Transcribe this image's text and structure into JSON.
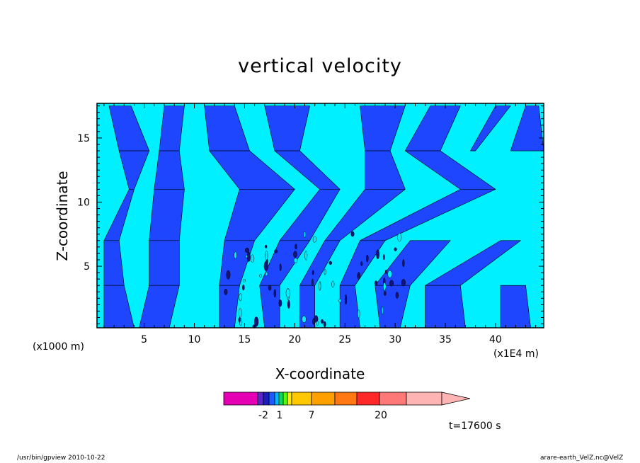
{
  "chart_data": {
    "type": "heatmap",
    "title": "vertical velocity",
    "xlabel": "X-coordinate",
    "ylabel": "Z-coordinate",
    "x_unit_label": "(x1E4 m)",
    "y_unit_label": "(x1000 m)",
    "xlim": [
      0.3,
      44.8
    ],
    "ylim": [
      0.2,
      17.7
    ],
    "x_ticks": [
      5,
      10,
      15,
      20,
      25,
      30,
      35,
      40
    ],
    "y_ticks": [
      5,
      10,
      15
    ],
    "time_label": "t=17600 s",
    "field_colors": {
      "negative": "#1e46ff",
      "positive": "#00f0ff",
      "contour": "#000000"
    },
    "colorbar": {
      "labels": [
        "-2",
        "1",
        "7",
        "20"
      ],
      "levels": [
        -4,
        -2,
        -1.5,
        -1,
        -0.5,
        0,
        0.5,
        1,
        4,
        7,
        10,
        13,
        20,
        24
      ],
      "colors": [
        "#e600b4",
        "#5a28c8",
        "#1e1ebe",
        "#1e5aff",
        "#00b4ff",
        "#00dc64",
        "#50ff00",
        "#ffeb00",
        "#ffc800",
        "#ffa000",
        "#ff7814",
        "#ff2828",
        "#ff7878",
        "#ffb4b4"
      ]
    },
    "blue_regions": [
      {
        "z": 17.5,
        "x_ranges": [
          [
            1.5,
            3.7
          ],
          [
            7.0,
            9.0
          ],
          [
            11.0,
            14.0
          ],
          [
            17.0,
            21.5
          ],
          [
            26.5,
            31.0
          ],
          [
            33.5,
            36.5
          ],
          [
            40.0,
            41.5
          ],
          [
            43.0,
            44.3
          ]
        ]
      },
      {
        "z": 14.0,
        "x_ranges": [
          [
            2.5,
            5.5
          ],
          [
            6.5,
            8.5
          ],
          [
            11.5,
            15.5
          ],
          [
            18.0,
            20.5
          ],
          [
            27.0,
            29.5
          ],
          [
            31.0,
            34.5
          ],
          [
            37.5,
            38.0
          ],
          [
            41.5,
            44.8
          ]
        ]
      },
      {
        "z": 11.0,
        "x_ranges": [
          [
            3.5,
            4.0
          ],
          [
            6.0,
            9.0
          ],
          [
            14.5,
            20.0
          ],
          [
            22.5,
            24.5
          ],
          [
            27.0,
            31.0
          ],
          [
            36.5,
            40.0
          ]
        ]
      },
      {
        "z": 7.0,
        "x_ranges": [
          [
            1.0,
            2.5
          ],
          [
            5.5,
            8.5
          ],
          [
            13.0,
            16.0
          ],
          [
            18.5,
            21.5
          ],
          [
            23.0,
            24.5
          ],
          [
            26.5,
            29.0
          ],
          [
            31.5,
            35.5
          ],
          [
            40.5,
            42.5
          ]
        ]
      },
      {
        "z": 3.5,
        "x_ranges": [
          [
            1.0,
            3.0
          ],
          [
            5.5,
            8.5
          ],
          [
            12.5,
            14.5
          ],
          [
            16.5,
            18.5
          ],
          [
            20.5,
            22.0
          ],
          [
            24.5,
            26.0
          ],
          [
            28.0,
            31.5
          ],
          [
            33.0,
            36.5
          ],
          [
            40.5,
            43.0
          ]
        ]
      },
      {
        "z": 0.2,
        "x_ranges": [
          [
            1.0,
            4.0
          ],
          [
            4.5,
            7.5
          ],
          [
            12.5,
            14.0
          ],
          [
            17.0,
            18.5
          ],
          [
            20.5,
            22.0
          ],
          [
            24.5,
            26.5
          ],
          [
            28.5,
            30.5
          ],
          [
            33.0,
            37.0
          ],
          [
            40.5,
            43.5
          ]
        ]
      }
    ]
  },
  "footer": {
    "left": "/usr/bin/gpview  2010-10-22",
    "right": "arare-earth_VelZ.nc@VelZ"
  }
}
